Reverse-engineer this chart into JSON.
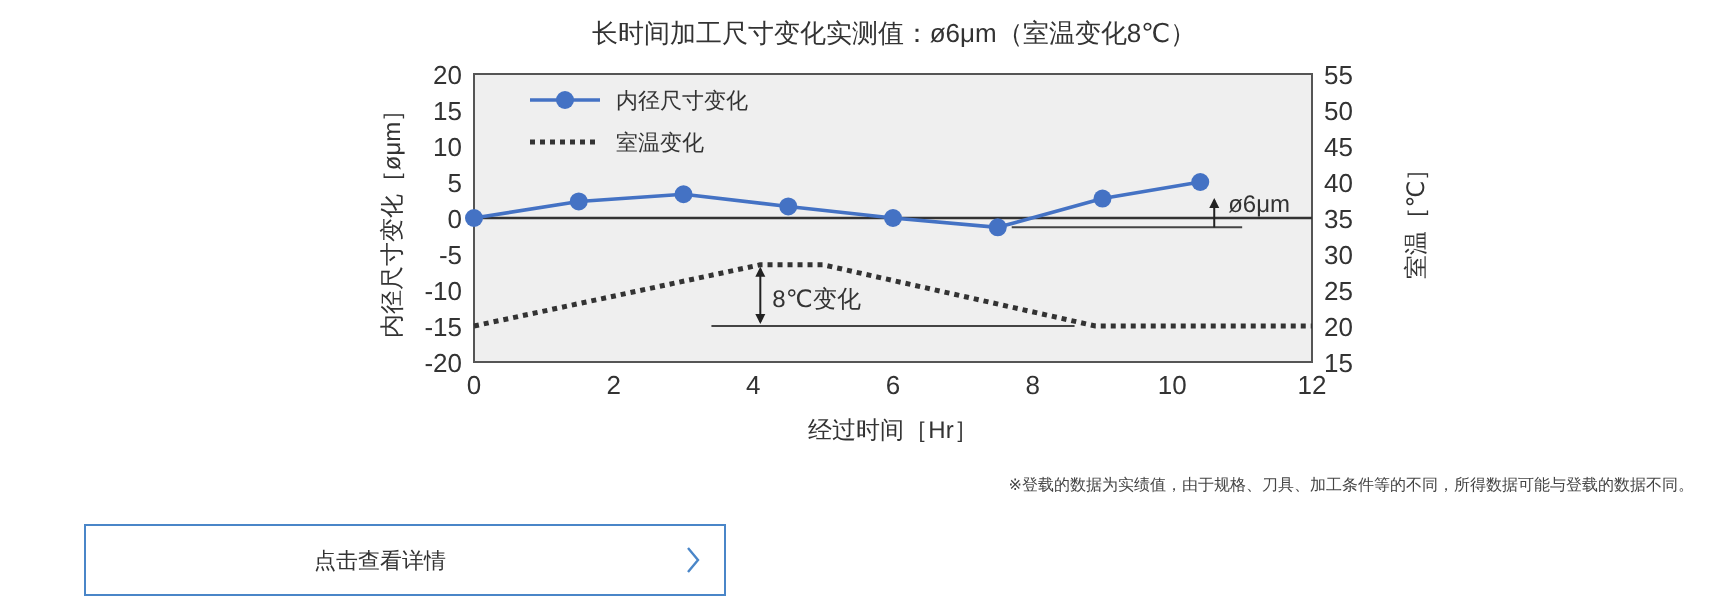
{
  "chart_data": {
    "type": "line",
    "title": "长时间加工尺寸变化实测值：ø6μm（室温变化8℃）",
    "xlabel": "经过时间［Hr］",
    "ylabel": "内径尺寸变化［øμm］",
    "y2label": "室温［℃］",
    "xlim": [
      0,
      12
    ],
    "xticks": [
      0,
      2,
      4,
      6,
      8,
      10,
      12
    ],
    "ylim": [
      -20,
      20
    ],
    "yticks": [
      -20,
      -15,
      -10,
      -5,
      0,
      5,
      10,
      15,
      20
    ],
    "y2lim": [
      15,
      55
    ],
    "y2ticks": [
      15,
      20,
      25,
      30,
      35,
      40,
      45,
      50,
      55
    ],
    "grid": false,
    "legend": "top left",
    "series": [
      {
        "name": "内径尺寸变化",
        "color": "#4472c4",
        "marker": "circle",
        "line_style": "solid",
        "x": [
          0,
          1.5,
          3,
          4.5,
          6,
          7.5,
          9,
          10.4
        ],
        "values": [
          0,
          2.3,
          3.3,
          1.6,
          0,
          -1.3,
          2.7,
          5
        ]
      },
      {
        "name": "室温变化",
        "color": "#333333",
        "marker": "none",
        "line_style": "dotted",
        "axis": "y2",
        "x": [
          0,
          4.1,
          5,
          8.9,
          12
        ],
        "values": [
          20,
          28.5,
          28.5,
          20,
          20
        ]
      }
    ],
    "ref_lines": [
      {
        "axis": "y",
        "value": 0,
        "color": "#333333"
      },
      {
        "axis": "y",
        "value": -1.3,
        "color": "#444444"
      },
      {
        "axis": "y2",
        "value": 20,
        "color": "#444444"
      }
    ],
    "annotations": [
      "ø6μm",
      "8℃变化",
      "※登载的数据为实绩值，由于规格、刀具、加工条件等的不同，所得数据可能与登载的数据不同。",
      "点击查看详情"
    ]
  }
}
